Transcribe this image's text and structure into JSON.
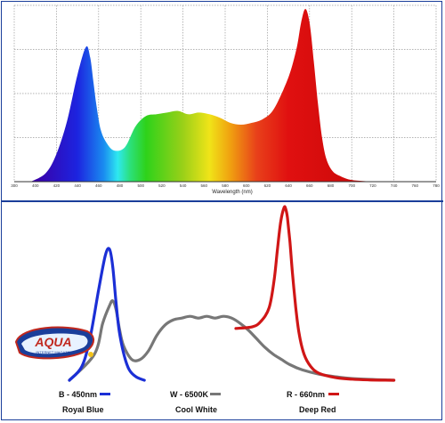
{
  "chart_data": [
    {
      "type": "area",
      "xlabel": "Wavelength (nm)",
      "ylabel": "",
      "xlim": [
        300,
        800
      ],
      "ylim": [
        0,
        1
      ],
      "grid": true,
      "x_ticks": [
        "300",
        "400",
        "420",
        "440",
        "460",
        "480",
        "500",
        "520",
        "540",
        "560",
        "580",
        "600",
        "620",
        "640",
        "660",
        "680",
        "700",
        "720",
        "740",
        "760",
        "780"
      ],
      "series": [
        {
          "x": [
            380,
            410,
            420,
            430,
            440,
            448,
            452,
            455,
            458,
            462,
            468,
            475,
            485,
            495,
            505,
            515,
            525,
            535,
            545,
            555,
            565,
            575,
            585,
            595,
            605,
            615,
            625,
            635,
            642,
            648,
            652,
            656,
            660,
            664,
            668,
            672,
            676,
            682,
            690,
            700,
            720
          ],
          "y": [
            0,
            0.05,
            0.16,
            0.35,
            0.62,
            0.78,
            0.72,
            0.58,
            0.44,
            0.3,
            0.22,
            0.18,
            0.2,
            0.32,
            0.38,
            0.39,
            0.4,
            0.41,
            0.39,
            0.4,
            0.39,
            0.37,
            0.34,
            0.33,
            0.34,
            0.36,
            0.41,
            0.53,
            0.64,
            0.78,
            0.92,
            1.0,
            0.92,
            0.7,
            0.45,
            0.25,
            0.13,
            0.06,
            0.03,
            0.01,
            0
          ]
        }
      ]
    },
    {
      "type": "line",
      "xlim": [
        400,
        800
      ],
      "ylim": [
        0,
        1
      ],
      "grid": false,
      "series": [
        {
          "name": "B - 450nm",
          "sublabel": "Royal Blue",
          "color": "#1b2fd6",
          "x": [
            400,
            415,
            425,
            435,
            443,
            448,
            452,
            456,
            460,
            466,
            472,
            480,
            490
          ],
          "y": [
            0,
            0.08,
            0.25,
            0.52,
            0.72,
            0.76,
            0.66,
            0.45,
            0.28,
            0.14,
            0.06,
            0.02,
            0
          ]
        },
        {
          "name": "W - 6500K",
          "sublabel": "Cool White",
          "color": "#777777",
          "x": [
            400,
            430,
            440,
            448,
            452,
            456,
            460,
            465,
            475,
            485,
            495,
            505,
            515,
            525,
            535,
            545,
            555,
            565,
            575,
            585,
            595,
            605,
            615,
            625,
            635,
            645,
            655,
            665,
            680,
            700,
            720,
            740,
            760,
            780,
            790
          ],
          "y": [
            0,
            0.15,
            0.33,
            0.43,
            0.46,
            0.41,
            0.3,
            0.2,
            0.12,
            0.12,
            0.17,
            0.26,
            0.32,
            0.35,
            0.36,
            0.37,
            0.36,
            0.37,
            0.36,
            0.37,
            0.36,
            0.33,
            0.29,
            0.24,
            0.19,
            0.15,
            0.12,
            0.09,
            0.06,
            0.035,
            0.02,
            0.01,
            0.005,
            0.002,
            0
          ]
        },
        {
          "name": "R - 660nm",
          "sublabel": "Deep Red",
          "color": "#d01616",
          "x": [
            600,
            620,
            630,
            640,
            646,
            650,
            654,
            658,
            660,
            662,
            665,
            668,
            672,
            676,
            682,
            690,
            700,
            720,
            740,
            760,
            790
          ],
          "y": [
            0.3,
            0.31,
            0.34,
            0.42,
            0.58,
            0.76,
            0.92,
            1.0,
            0.99,
            0.94,
            0.8,
            0.62,
            0.42,
            0.27,
            0.15,
            0.08,
            0.04,
            0.015,
            0.006,
            0.002,
            0
          ]
        }
      ]
    }
  ],
  "logo": {
    "text": "AQUA",
    "subtext": "INTERNET MAGAZIN"
  },
  "colors": {
    "frame": "#1a3e9a",
    "grid": "#9a9a9a",
    "blue": "#1b2fd6",
    "white": "#777777",
    "red": "#d01616"
  }
}
